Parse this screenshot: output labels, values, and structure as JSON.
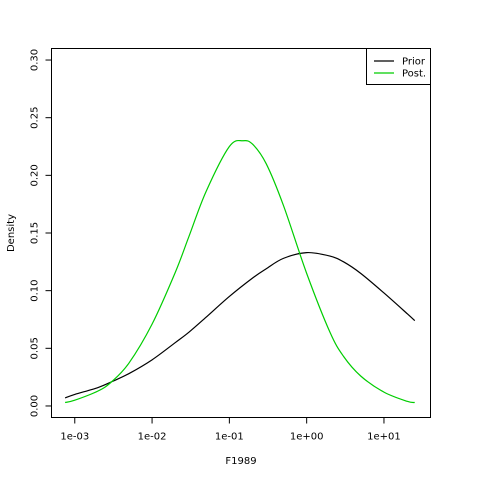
{
  "chart_data": {
    "type": "line",
    "title": "",
    "xlabel": "F1989",
    "ylabel": "Density",
    "x_scale": "log",
    "xlim": [
      0.0005,
      40
    ],
    "ylim": [
      -0.01,
      0.31
    ],
    "x_ticks": [
      0.001,
      0.01,
      0.1,
      1,
      10
    ],
    "x_tick_labels": [
      "1e-03",
      "1e-02",
      "1e-01",
      "1e+00",
      "1e+01"
    ],
    "y_ticks": [
      0.0,
      0.05,
      0.1,
      0.15,
      0.2,
      0.25,
      0.3
    ],
    "y_tick_labels": [
      "0.00",
      "0.05",
      "0.10",
      "0.15",
      "0.20",
      "0.25",
      "0.30"
    ],
    "grid": false,
    "legend_position": "top-right",
    "series": [
      {
        "name": "Prior",
        "color": "#000000",
        "x": [
          0.00075,
          0.001,
          0.002,
          0.003,
          0.005,
          0.01,
          0.02,
          0.03,
          0.05,
          0.1,
          0.2,
          0.3,
          0.5,
          1,
          2,
          3,
          5,
          10,
          20,
          25
        ],
        "y": [
          0.007,
          0.01,
          0.016,
          0.021,
          0.028,
          0.04,
          0.055,
          0.064,
          0.077,
          0.095,
          0.111,
          0.119,
          0.128,
          0.133,
          0.13,
          0.125,
          0.115,
          0.098,
          0.08,
          0.074
        ]
      },
      {
        "name": "Post.",
        "color": "#00cd00",
        "x": [
          0.00075,
          0.001,
          0.002,
          0.003,
          0.005,
          0.01,
          0.02,
          0.03,
          0.05,
          0.1,
          0.15,
          0.2,
          0.3,
          0.5,
          1,
          2,
          3,
          5,
          10,
          20,
          25
        ],
        "y": [
          0.003,
          0.005,
          0.013,
          0.021,
          0.037,
          0.071,
          0.116,
          0.147,
          0.186,
          0.225,
          0.23,
          0.227,
          0.21,
          0.174,
          0.115,
          0.064,
          0.043,
          0.026,
          0.012,
          0.004,
          0.003
        ]
      }
    ]
  }
}
